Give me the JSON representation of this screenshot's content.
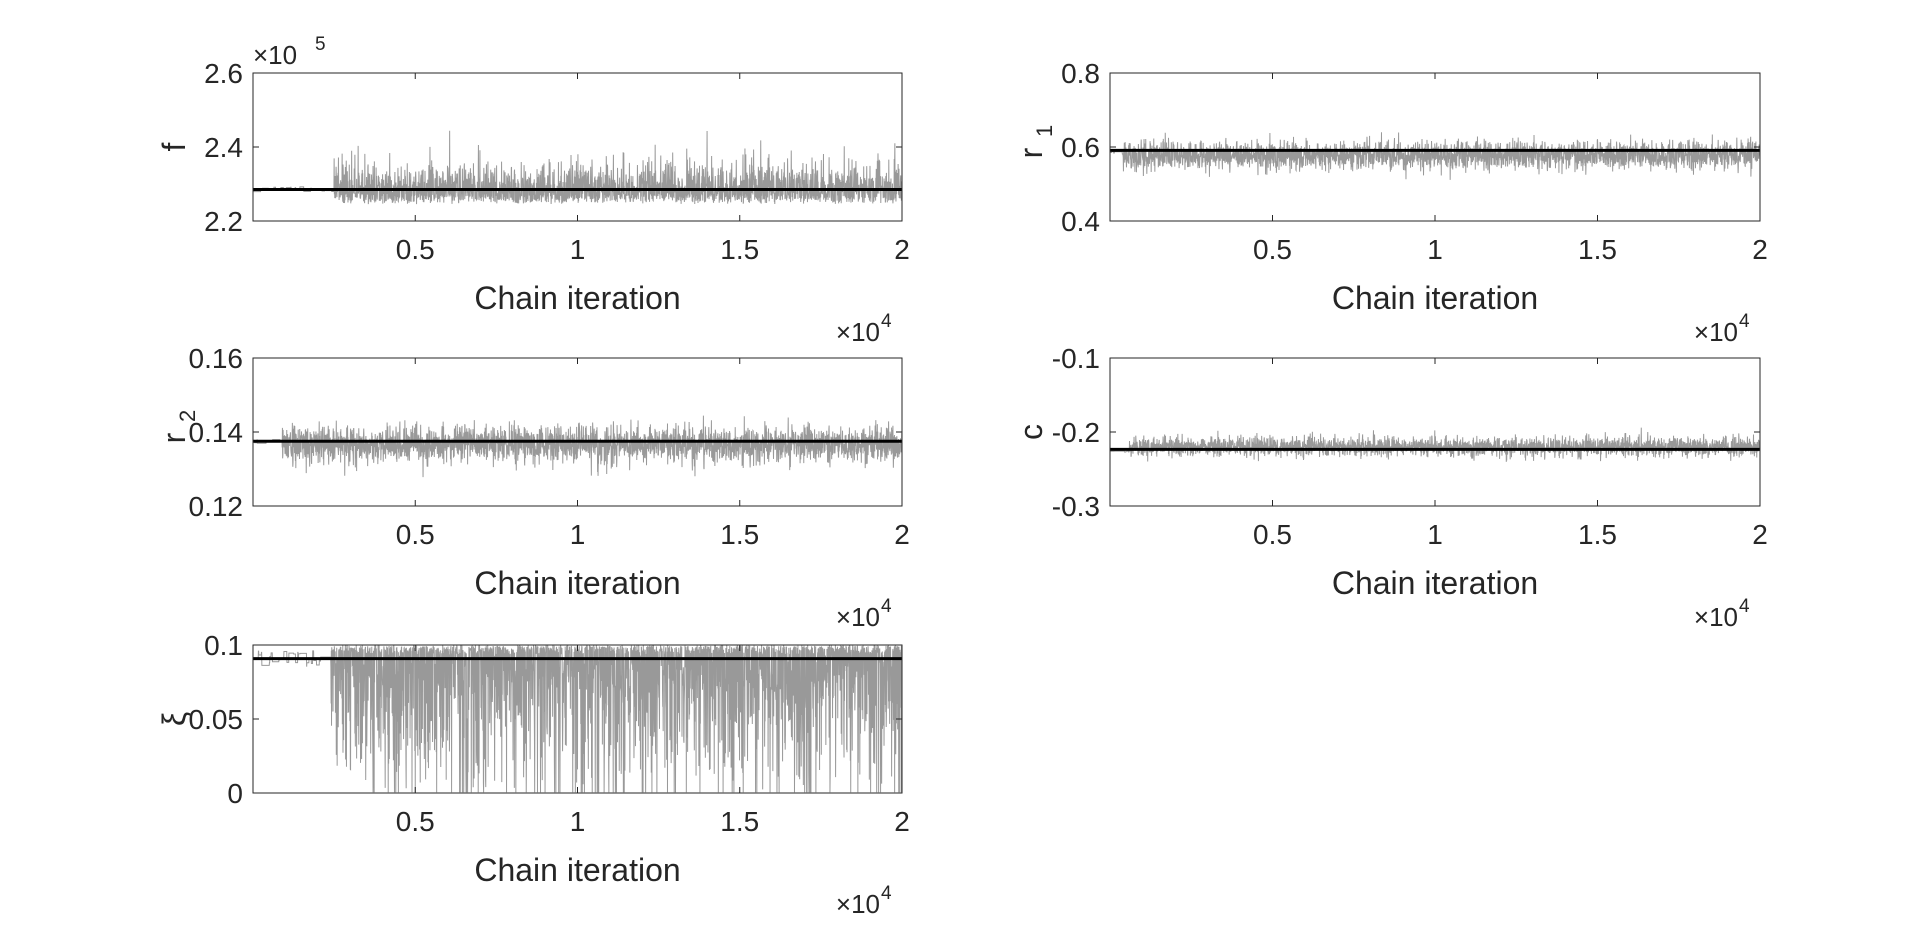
{
  "figure": {
    "background": "#ffffff",
    "trace_color": "#999999",
    "line_color": "#000000",
    "axis_color": "#262626"
  },
  "chart_data": [
    {
      "type": "line",
      "ylabel": "f",
      "xlabel": "Chain iteration",
      "xlim": [
        0,
        20000
      ],
      "xticks": [
        "0.5",
        "1",
        "1.5",
        "2"
      ],
      "xtick_values": [
        5000,
        10000,
        15000,
        20000
      ],
      "x_exponent": "10^4",
      "ylim": [
        220000,
        260000
      ],
      "yticks": [
        "2.2",
        "2.4",
        "2.6"
      ],
      "ytick_values": [
        220000,
        240000,
        260000
      ],
      "y_exponent": "10^5",
      "reference_value": 228500,
      "trace": {
        "iterations": 20000,
        "start": 228500,
        "burnin_until": 2500,
        "low": 224500,
        "high": 244500,
        "typical_spread": 6000
      },
      "grid": false,
      "legend": "none"
    },
    {
      "type": "line",
      "ylabel": "r",
      "ylabel_sub": "1",
      "xlabel": "Chain iteration",
      "xlim": [
        0,
        20000
      ],
      "xticks": [
        "0.5",
        "1",
        "1.5",
        "2"
      ],
      "xtick_values": [
        5000,
        10000,
        15000,
        20000
      ],
      "x_exponent": "10^4",
      "ylim": [
        0.4,
        0.8
      ],
      "yticks": [
        "0.4",
        "0.6",
        "0.8"
      ],
      "ytick_values": [
        0.4,
        0.6,
        0.8
      ],
      "y_exponent": "",
      "reference_value": 0.591,
      "trace": {
        "iterations": 20000,
        "start": 0.585,
        "burnin_until": 400,
        "low": 0.51,
        "high": 0.645,
        "typical_spread": 0.035
      },
      "grid": false,
      "legend": "none"
    },
    {
      "type": "line",
      "ylabel": "r",
      "ylabel_sub": "2",
      "xlabel": "Chain iteration",
      "xlim": [
        0,
        20000
      ],
      "xticks": [
        "0.5",
        "1",
        "1.5",
        "2"
      ],
      "xtick_values": [
        5000,
        10000,
        15000,
        20000
      ],
      "x_exponent": "10^4",
      "ylim": [
        0.12,
        0.16
      ],
      "yticks": [
        "0.12",
        "0.14",
        "0.16"
      ],
      "ytick_values": [
        0.12,
        0.14,
        0.16
      ],
      "y_exponent": "",
      "reference_value": 0.1375,
      "trace": {
        "iterations": 20000,
        "start": 0.1375,
        "burnin_until": 900,
        "low": 0.1245,
        "high": 0.149,
        "typical_spread": 0.0045
      },
      "grid": false,
      "legend": "none"
    },
    {
      "type": "line",
      "ylabel": "c",
      "ylabel_sub": "",
      "xlabel": "Chain iteration",
      "xlim": [
        0,
        20000
      ],
      "xticks": [
        "0.5",
        "1",
        "1.5",
        "2"
      ],
      "xtick_values": [
        5000,
        10000,
        15000,
        20000
      ],
      "x_exponent": "10^4",
      "ylim": [
        -0.3,
        -0.1
      ],
      "yticks": [
        "-0.3",
        "-0.2",
        "-0.1"
      ],
      "ytick_values": [
        -0.3,
        -0.2,
        -0.1
      ],
      "y_exponent": "",
      "reference_value": -0.2235,
      "trace": {
        "iterations": 20000,
        "start": -0.226,
        "burnin_until": 600,
        "low": -0.25,
        "high": -0.19,
        "typical_spread": 0.012
      },
      "grid": false,
      "legend": "none"
    },
    {
      "type": "line",
      "ylabel": "ξ",
      "ylabel_sub": "",
      "xlabel": "Chain iteration",
      "xlim": [
        0,
        20000
      ],
      "xticks": [
        "0.5",
        "1",
        "1.5",
        "2"
      ],
      "xtick_values": [
        5000,
        10000,
        15000,
        20000
      ],
      "x_exponent": "10^4",
      "ylim": [
        0,
        0.1
      ],
      "yticks": [
        "0",
        "0.05",
        "0.1"
      ],
      "ytick_values": [
        0,
        0.05,
        0.1
      ],
      "y_exponent": "",
      "reference_value": 0.0908,
      "trace": {
        "iterations": 20000,
        "start": 0.0905,
        "burnin_until": 2400,
        "low": 0.0,
        "high": 0.1,
        "typical_spread": 0.05
      },
      "grid": false,
      "legend": "none"
    }
  ],
  "labels": {
    "p0": {
      "ylabel": "f",
      "xlabel": "Chain iteration",
      "x_exp_base": "×10",
      "x_exp_pow": "4",
      "y_exp_base": "×10",
      "y_exp_pow": "5",
      "yticks": [
        "2.2",
        "2.4",
        "2.6"
      ],
      "xticks": [
        "0.5",
        "1",
        "1.5",
        "2"
      ]
    },
    "p1": {
      "ylabel": "r",
      "ylabel_sub": "1",
      "xlabel": "Chain iteration",
      "x_exp_base": "×10",
      "x_exp_pow": "4",
      "yticks": [
        "0.4",
        "0.6",
        "0.8"
      ],
      "xticks": [
        "0.5",
        "1",
        "1.5",
        "2"
      ]
    },
    "p2": {
      "ylabel": "r",
      "ylabel_sub": "2",
      "xlabel": "Chain iteration",
      "x_exp_base": "×10",
      "x_exp_pow": "4",
      "yticks": [
        "0.12",
        "0.14",
        "0.16"
      ],
      "xticks": [
        "0.5",
        "1",
        "1.5",
        "2"
      ]
    },
    "p3": {
      "ylabel": "c",
      "xlabel": "Chain iteration",
      "x_exp_base": "×10",
      "x_exp_pow": "4",
      "yticks": [
        "-0.3",
        "-0.2",
        "-0.1"
      ],
      "xticks": [
        "0.5",
        "1",
        "1.5",
        "2"
      ]
    },
    "p4": {
      "ylabel": "ξ",
      "xlabel": "Chain iteration",
      "x_exp_base": "×10",
      "x_exp_pow": "4",
      "yticks": [
        "0",
        "0.05",
        "0.1"
      ],
      "xticks": [
        "0.5",
        "1",
        "1.5",
        "2"
      ]
    }
  }
}
